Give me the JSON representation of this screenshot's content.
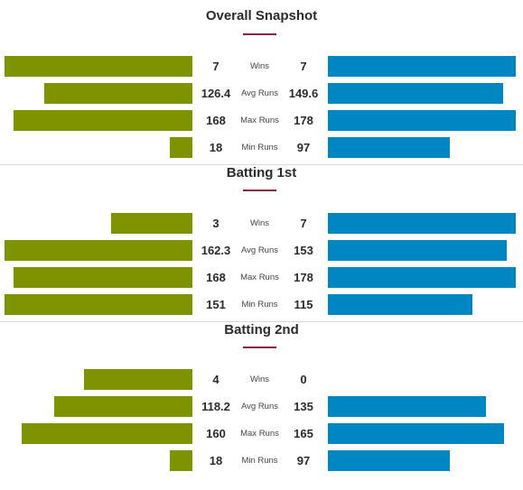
{
  "colors": {
    "left_team": "#7d9400",
    "right_team": "#0087c1",
    "accent": "#8a1e44"
  },
  "scale_max": 178,
  "sections": [
    {
      "title": "Overall Snapshot",
      "rows": [
        {
          "label": "Wins",
          "left": "7",
          "right": "7"
        },
        {
          "label": "Avg Runs",
          "left": "126.4",
          "right": "149.6"
        },
        {
          "label": "Max Runs",
          "left": "168",
          "right": "178"
        },
        {
          "label": "Min Runs",
          "left": "18",
          "right": "97"
        }
      ]
    },
    {
      "title": "Batting 1st",
      "rows": [
        {
          "label": "Wins",
          "left": "3",
          "right": "7"
        },
        {
          "label": "Avg Runs",
          "left": "162.3",
          "right": "153"
        },
        {
          "label": "Max Runs",
          "left": "168",
          "right": "178"
        },
        {
          "label": "Min Runs",
          "left": "151",
          "right": "115"
        }
      ]
    },
    {
      "title": "Batting 2nd",
      "rows": [
        {
          "label": "Wins",
          "left": "4",
          "right": "0"
        },
        {
          "label": "Avg Runs",
          "left": "118.2",
          "right": "135"
        },
        {
          "label": "Max Runs",
          "left": "160",
          "right": "165"
        },
        {
          "label": "Min Runs",
          "left": "18",
          "right": "97"
        }
      ]
    }
  ]
}
